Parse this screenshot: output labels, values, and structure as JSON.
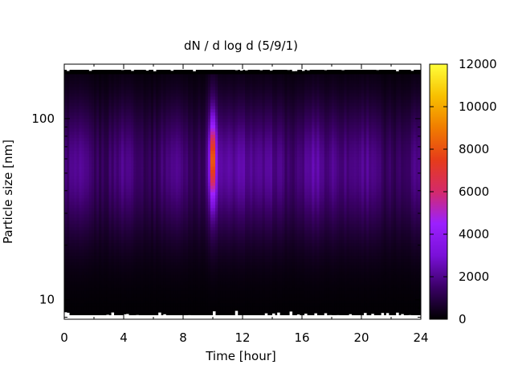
{
  "chart_data": {
    "type": "heatmap",
    "title": "dN / d log d (5/9/1)",
    "xlabel": "Time [hour]",
    "ylabel": "Particle size [nm]",
    "xlim": [
      0,
      24
    ],
    "ylim": [
      7.8,
      200
    ],
    "y_scale": "log",
    "x_ticks": [
      "0",
      "4",
      "8",
      "12",
      "16",
      "20",
      "24"
    ],
    "y_ticks": [
      "10",
      "100"
    ],
    "colorbar": {
      "range": [
        0,
        12000
      ],
      "ticks": [
        "0",
        "2000",
        "4000",
        "6000",
        "8000",
        "10000",
        "12000"
      ],
      "colormap": [
        "#000000",
        "#3a0066",
        "#7a10d8",
        "#9b20ff",
        "#d42a6a",
        "#e63c1a",
        "#f07c00",
        "#f8c000",
        "#ffff3a"
      ]
    },
    "peak": {
      "time_hour": 10,
      "size_nm": 60,
      "value": 7000
    },
    "grid": false,
    "legend": "colorbar-right"
  }
}
